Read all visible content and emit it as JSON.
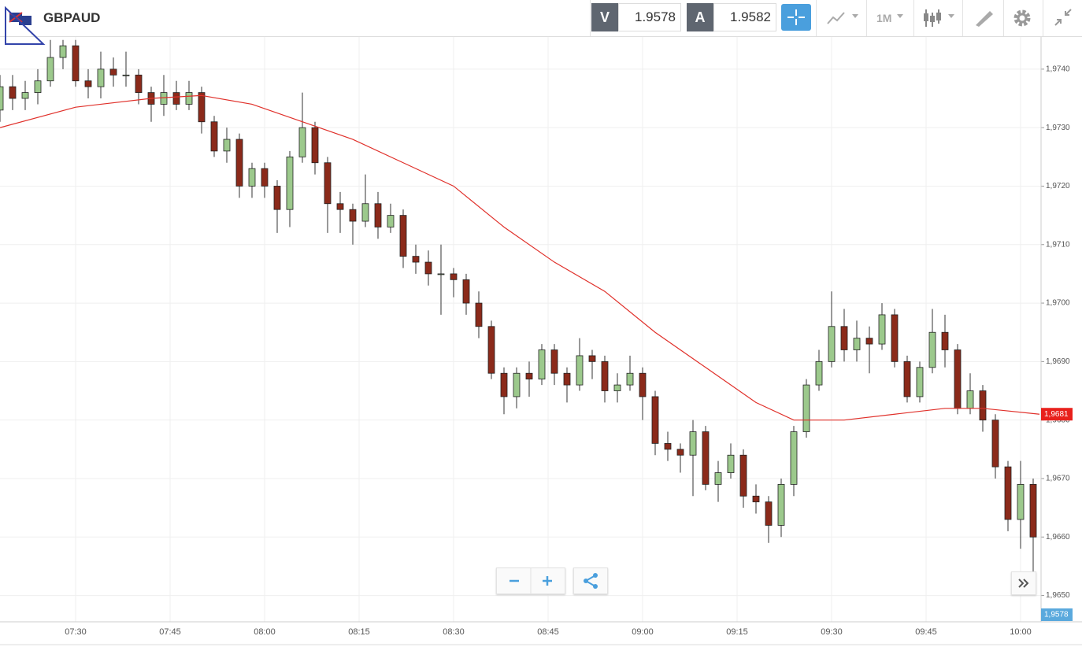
{
  "header": {
    "symbol": "GBPAUD",
    "sell_label": "V",
    "sell_price": "1.9578",
    "buy_label": "A",
    "buy_price": "1.9582",
    "timeframe": "1M"
  },
  "chart_data": {
    "type": "candlestick",
    "up_color": "#9cc98c",
    "down_color": "#8b2a1a",
    "ma_color": "#e0302a",
    "grid": true,
    "x": [
      "07:18",
      "07:20",
      "07:22",
      "07:24",
      "07:26",
      "07:28",
      "07:30",
      "07:32",
      "07:34",
      "07:36",
      "07:38",
      "07:40",
      "07:42",
      "07:44",
      "07:46",
      "07:48",
      "07:50",
      "07:52",
      "07:54",
      "07:56",
      "07:58",
      "08:00",
      "08:02",
      "08:04",
      "08:06",
      "08:08",
      "08:10",
      "08:12",
      "08:14",
      "08:16",
      "08:18",
      "08:20",
      "08:22",
      "08:24",
      "08:26",
      "08:28",
      "08:30",
      "08:32",
      "08:34",
      "08:36",
      "08:38",
      "08:40",
      "08:42",
      "08:44",
      "08:46",
      "08:48",
      "08:50",
      "08:52",
      "08:54",
      "08:56",
      "08:58",
      "09:00",
      "09:02",
      "09:04",
      "09:06",
      "09:08",
      "09:10",
      "09:12",
      "09:14",
      "09:16",
      "09:18",
      "09:20",
      "09:22",
      "09:24",
      "09:26",
      "09:28",
      "09:30",
      "09:32",
      "09:34",
      "09:36",
      "09:38",
      "09:40",
      "09:42",
      "09:44",
      "09:46",
      "09:48",
      "09:50",
      "09:52",
      "09:54",
      "09:56",
      "09:58",
      "10:00",
      "10:02"
    ],
    "open": [
      1.9733,
      1.9737,
      1.9735,
      1.9736,
      1.9738,
      1.9742,
      1.9744,
      1.9738,
      1.9737,
      1.974,
      1.9739,
      1.9739,
      1.9736,
      1.9734,
      1.9736,
      1.9734,
      1.9736,
      1.9731,
      1.9726,
      1.9728,
      1.972,
      1.9723,
      1.972,
      1.9716,
      1.9725,
      1.973,
      1.9724,
      1.9717,
      1.9716,
      1.9714,
      1.9717,
      1.9713,
      1.9715,
      1.9708,
      1.9707,
      1.9705,
      1.9705,
      1.9704,
      1.97,
      1.9696,
      1.9688,
      1.9684,
      1.9688,
      1.9687,
      1.9692,
      1.9688,
      1.9686,
      1.9691,
      1.969,
      1.9685,
      1.9686,
      1.9688,
      1.9684,
      1.9676,
      1.9675,
      1.9674,
      1.9678,
      1.9669,
      1.9671,
      1.9674,
      1.9667,
      1.9666,
      1.9662,
      1.9669,
      1.9678,
      1.9686,
      1.969,
      1.9696,
      1.9692,
      1.9694,
      1.9693,
      1.9698,
      1.969,
      1.9684,
      1.9689,
      1.9695,
      1.9692,
      1.9682,
      1.9685,
      1.968,
      1.9672,
      1.9663,
      1.9669
    ],
    "high": [
      1.9739,
      1.9739,
      1.9738,
      1.974,
      1.9745,
      1.9745,
      1.9745,
      1.974,
      1.9743,
      1.9742,
      1.9743,
      1.974,
      1.9737,
      1.9739,
      1.9738,
      1.9738,
      1.9737,
      1.9732,
      1.973,
      1.9729,
      1.9724,
      1.9724,
      1.9721,
      1.9726,
      1.9736,
      1.9731,
      1.9725,
      1.9719,
      1.9717,
      1.9722,
      1.9719,
      1.9717,
      1.9716,
      1.971,
      1.9709,
      1.971,
      1.9706,
      1.9705,
      1.9702,
      1.9697,
      1.9689,
      1.9689,
      1.969,
      1.9693,
      1.9693,
      1.9689,
      1.9694,
      1.9692,
      1.9691,
      1.9688,
      1.9691,
      1.9689,
      1.9685,
      1.9678,
      1.9676,
      1.968,
      1.9679,
      1.9673,
      1.9676,
      1.9675,
      1.9669,
      1.9667,
      1.967,
      1.9679,
      1.9687,
      1.9692,
      1.9702,
      1.9699,
      1.9697,
      1.9696,
      1.97,
      1.9699,
      1.9691,
      1.969,
      1.9699,
      1.9698,
      1.9693,
      1.9688,
      1.9686,
      1.9681,
      1.9673,
      1.9673,
      1.967
    ],
    "low": [
      1.9731,
      1.9733,
      1.9733,
      1.9734,
      1.9737,
      1.974,
      1.9737,
      1.9735,
      1.9735,
      1.9737,
      1.9737,
      1.9734,
      1.9731,
      1.9732,
      1.9733,
      1.9733,
      1.9729,
      1.9725,
      1.9724,
      1.9718,
      1.9718,
      1.9718,
      1.9712,
      1.9713,
      1.9724,
      1.9722,
      1.9712,
      1.9712,
      1.971,
      1.9713,
      1.9711,
      1.9712,
      1.9706,
      1.9705,
      1.9703,
      1.9698,
      1.9701,
      1.9698,
      1.9694,
      1.9687,
      1.9681,
      1.9682,
      1.9684,
      1.9686,
      1.9686,
      1.9683,
      1.9685,
      1.9687,
      1.9683,
      1.9683,
      1.9685,
      1.968,
      1.9674,
      1.9673,
      1.9671,
      1.9667,
      1.9668,
      1.9666,
      1.967,
      1.9665,
      1.9664,
      1.9659,
      1.966,
      1.9667,
      1.9677,
      1.9685,
      1.9689,
      1.969,
      1.969,
      1.9688,
      1.9692,
      1.9689,
      1.9683,
      1.9683,
      1.9688,
      1.9689,
      1.9681,
      1.9681,
      1.9678,
      1.967,
      1.9661,
      1.9658,
      1.9653
    ],
    "close": [
      1.9737,
      1.9735,
      1.9736,
      1.9738,
      1.9742,
      1.9744,
      1.9738,
      1.9737,
      1.974,
      1.9739,
      1.9739,
      1.9736,
      1.9734,
      1.9736,
      1.9734,
      1.9736,
      1.9731,
      1.9726,
      1.9728,
      1.972,
      1.9723,
      1.972,
      1.9716,
      1.9725,
      1.973,
      1.9724,
      1.9717,
      1.9716,
      1.9714,
      1.9717,
      1.9713,
      1.9715,
      1.9708,
      1.9707,
      1.9705,
      1.9705,
      1.9704,
      1.97,
      1.9696,
      1.9688,
      1.9684,
      1.9688,
      1.9687,
      1.9692,
      1.9688,
      1.9686,
      1.9691,
      1.969,
      1.9685,
      1.9686,
      1.9688,
      1.9684,
      1.9676,
      1.9675,
      1.9674,
      1.9678,
      1.9669,
      1.9671,
      1.9674,
      1.9667,
      1.9666,
      1.9662,
      1.9669,
      1.9678,
      1.9686,
      1.969,
      1.9696,
      1.9692,
      1.9694,
      1.9693,
      1.9698,
      1.969,
      1.9684,
      1.9689,
      1.9695,
      1.9692,
      1.9682,
      1.9685,
      1.968,
      1.9672,
      1.9663,
      1.9669,
      1.966
    ],
    "ma_x": [
      "07:18",
      "07:30",
      "07:42",
      "07:50",
      "07:58",
      "08:06",
      "08:14",
      "08:22",
      "08:30",
      "08:38",
      "08:46",
      "08:54",
      "09:02",
      "09:10",
      "09:18",
      "09:24",
      "09:32",
      "09:40",
      "09:48",
      "09:54",
      "10:03"
    ],
    "ma_values": [
      1.973,
      1.97335,
      1.9735,
      1.97355,
      1.9734,
      1.9731,
      1.9728,
      1.9724,
      1.972,
      1.9713,
      1.9707,
      1.9702,
      1.9695,
      1.9689,
      1.9683,
      1.968,
      1.968,
      1.9681,
      1.9682,
      1.9682,
      1.9681
    ],
    "xlim": [
      "07:18",
      "10:03"
    ],
    "xticks": [
      "07:30",
      "07:45",
      "08:00",
      "08:15",
      "08:30",
      "08:45",
      "09:00",
      "09:15",
      "09:30",
      "09:45",
      "10:00"
    ],
    "ylim": [
      1.96455,
      1.97455
    ],
    "yticks": [
      {
        "value": 1.965,
        "label": "1,9650"
      },
      {
        "value": 1.966,
        "label": "1,9660"
      },
      {
        "value": 1.967,
        "label": "1,9670"
      },
      {
        "value": 1.968,
        "label": "1,9680"
      },
      {
        "value": 1.969,
        "label": "1,9690"
      },
      {
        "value": 1.97,
        "label": "1,9700"
      },
      {
        "value": 1.971,
        "label": "1,9710"
      },
      {
        "value": 1.972,
        "label": "1,9720"
      },
      {
        "value": 1.973,
        "label": "1,9730"
      },
      {
        "value": 1.974,
        "label": "1,9740"
      }
    ],
    "ma_last": {
      "value": 1.9681,
      "label": "1,9681"
    },
    "bid_tag": "1,9578"
  }
}
